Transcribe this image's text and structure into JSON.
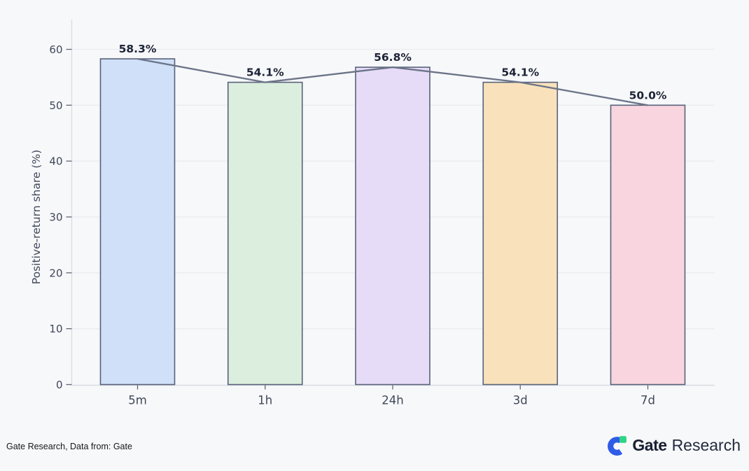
{
  "chart_data": {
    "type": "bar",
    "subtype": "bar-with-line-overlay",
    "categories": [
      "5m",
      "1h",
      "24h",
      "3d",
      "7d"
    ],
    "values": [
      58.3,
      54.1,
      56.8,
      54.1,
      50.0
    ],
    "data_labels": [
      "58.3%",
      "54.1%",
      "56.8%",
      "54.1%",
      "50.0%"
    ],
    "title": "",
    "xlabel": "",
    "ylabel": "Positive-return share (%)",
    "ylim": [
      0,
      60
    ],
    "yticks": [
      0,
      10,
      20,
      30,
      40,
      50,
      60
    ],
    "grid": true,
    "legend_position": "none",
    "overlay": "line-through-bar-tops",
    "bar_colors": [
      "#cfe0f8",
      "#dceede",
      "#e7dcf8",
      "#f9e2bb",
      "#f9d6df"
    ],
    "bar_edge_color": "#58627a",
    "line_color": "#6b7488",
    "data_label_color": "#1d2436",
    "tick_label_color": "#3f4759",
    "axis_label_color": "#3f4759",
    "grid_color": "#eaecf0",
    "axis_line_color": "#d9dce2",
    "tick_mark_color": "#5f6775",
    "background_color": "#f7f8fa"
  },
  "footer": {
    "source_text": "Gate Research, Data from: Gate",
    "text_color": "#16181d",
    "logo": {
      "brand": "Gate",
      "suffix": "Research",
      "icon": "gate-logo-icon",
      "icon_blue": "#2f5ce6",
      "icon_green": "#2ed584",
      "brand_color": "#171e33",
      "suffix_color": "#232b3f"
    }
  }
}
